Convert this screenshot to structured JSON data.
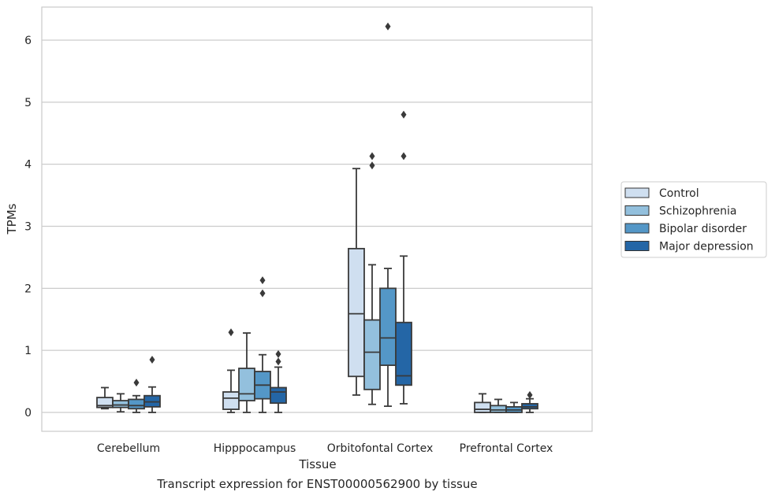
{
  "caption": "Transcript expression for ENST00000562900 by tissue",
  "chart_data": {
    "type": "box",
    "title": "",
    "xlabel": "Tissue",
    "ylabel": "TPMs",
    "ylim": [
      -0.3,
      6.55
    ],
    "yticks": [
      0,
      1,
      2,
      3,
      4,
      5,
      6
    ],
    "grid": "horizontal",
    "legend_position": "right",
    "categories": [
      "Cerebellum",
      "Hipppocampus",
      "Orbitofontal Cortex",
      "Prefrontal Cortex"
    ],
    "series": [
      {
        "name": "Control",
        "color": "#cfdff0",
        "boxes": [
          {
            "whisker_low": 0.06,
            "q1": 0.08,
            "median": 0.11,
            "q3": 0.24,
            "whisker_high": 0.4,
            "outliers": []
          },
          {
            "whisker_low": 0.0,
            "q1": 0.05,
            "median": 0.23,
            "q3": 0.33,
            "whisker_high": 0.68,
            "outliers": [
              1.29
            ]
          },
          {
            "whisker_low": 0.28,
            "q1": 0.58,
            "median": 1.59,
            "q3": 2.64,
            "whisker_high": 3.93,
            "outliers": []
          },
          {
            "whisker_low": 0.0,
            "q1": 0.0,
            "median": 0.05,
            "q3": 0.16,
            "whisker_high": 0.3,
            "outliers": []
          }
        ]
      },
      {
        "name": "Schizophrenia",
        "color": "#93c0dd",
        "boxes": [
          {
            "whisker_low": 0.01,
            "q1": 0.08,
            "median": 0.12,
            "q3": 0.19,
            "whisker_high": 0.3,
            "outliers": []
          },
          {
            "whisker_low": 0.0,
            "q1": 0.19,
            "median": 0.3,
            "q3": 0.71,
            "whisker_high": 1.28,
            "outliers": []
          },
          {
            "whisker_low": 0.13,
            "q1": 0.37,
            "median": 0.97,
            "q3": 1.49,
            "whisker_high": 2.38,
            "outliers": [
              3.98,
              4.13
            ]
          },
          {
            "whisker_low": 0.0,
            "q1": 0.0,
            "median": 0.04,
            "q3": 0.11,
            "whisker_high": 0.21,
            "outliers": []
          }
        ]
      },
      {
        "name": "Bipolar disorder",
        "color": "#5497c7",
        "boxes": [
          {
            "whisker_low": 0.0,
            "q1": 0.06,
            "median": 0.11,
            "q3": 0.21,
            "whisker_high": 0.27,
            "outliers": [
              0.48
            ]
          },
          {
            "whisker_low": 0.0,
            "q1": 0.22,
            "median": 0.44,
            "q3": 0.66,
            "whisker_high": 0.93,
            "outliers": [
              1.92,
              2.13
            ]
          },
          {
            "whisker_low": 0.1,
            "q1": 0.76,
            "median": 1.2,
            "q3": 2.0,
            "whisker_high": 2.32,
            "outliers": [
              6.22
            ]
          },
          {
            "whisker_low": 0.0,
            "q1": 0.0,
            "median": 0.04,
            "q3": 0.09,
            "whisker_high": 0.16,
            "outliers": []
          }
        ]
      },
      {
        "name": "Major depression",
        "color": "#2466a6",
        "boxes": [
          {
            "whisker_low": 0.0,
            "q1": 0.09,
            "median": 0.17,
            "q3": 0.27,
            "whisker_high": 0.41,
            "outliers": [
              0.85
            ]
          },
          {
            "whisker_low": 0.0,
            "q1": 0.15,
            "median": 0.33,
            "q3": 0.4,
            "whisker_high": 0.73,
            "outliers": [
              0.82,
              0.94
            ]
          },
          {
            "whisker_low": 0.14,
            "q1": 0.44,
            "median": 0.59,
            "q3": 1.45,
            "whisker_high": 2.52,
            "outliers": [
              4.13,
              4.8
            ]
          },
          {
            "whisker_low": 0.0,
            "q1": 0.06,
            "median": 0.09,
            "q3": 0.14,
            "whisker_high": 0.22,
            "outliers": [
              0.28
            ]
          }
        ]
      }
    ],
    "colors": {
      "line": "#3a3a3a",
      "grid": "#cccccc",
      "frame": "#cccccc"
    }
  }
}
